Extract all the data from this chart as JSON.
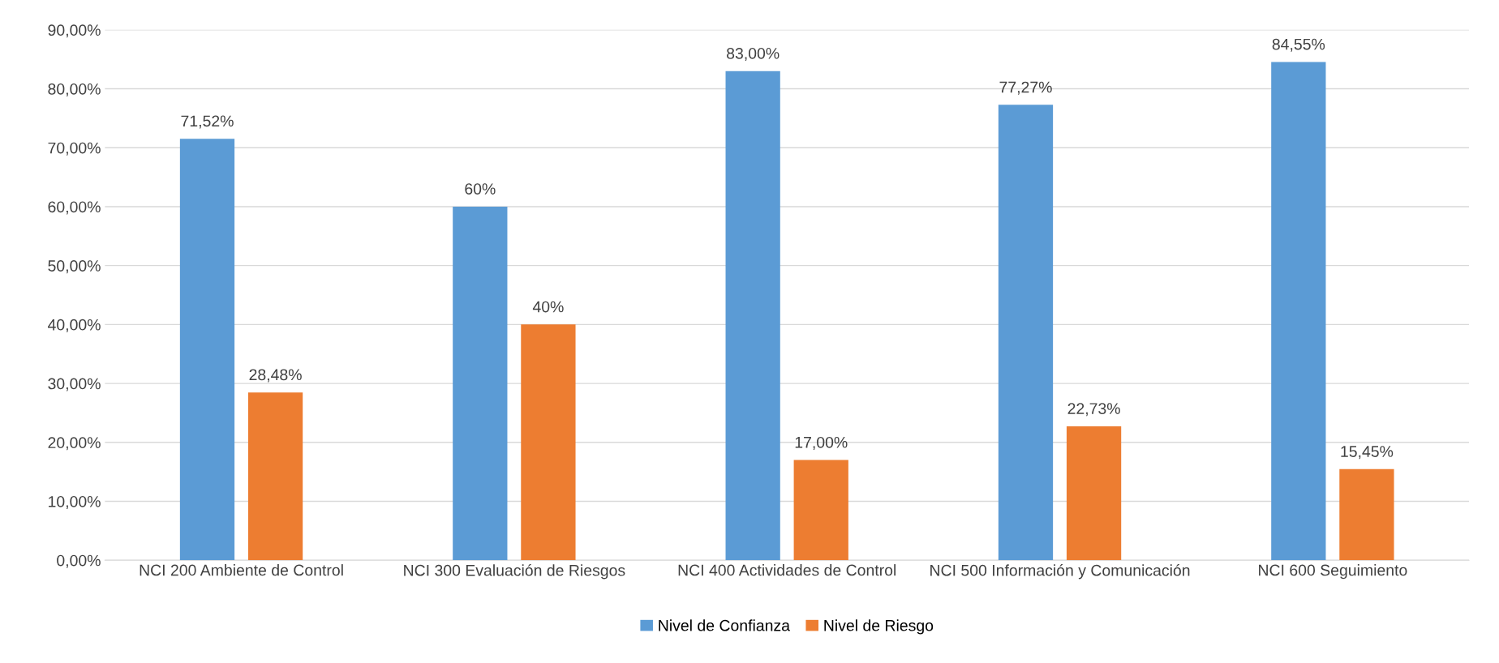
{
  "chart_data": {
    "type": "bar",
    "categories": [
      "NCI 200 Ambiente de Control",
      "NCI 300 Evaluación de Riesgos",
      "NCI 400 Actividades de Control",
      "NCI 500 Información y Comunicación",
      "NCI 600 Seguimiento"
    ],
    "series": [
      {
        "name": "Nivel de Confianza",
        "color": "#5b9bd5",
        "values": [
          71.52,
          60,
          83,
          77.27,
          84.55
        ],
        "value_labels": [
          "71,52%",
          "60%",
          "83,00%",
          "77,27%",
          "84,55%"
        ]
      },
      {
        "name": "Nivel de Riesgo",
        "color": "#ed7d31",
        "values": [
          28.48,
          40,
          17,
          22.73,
          15.45
        ],
        "value_labels": [
          "28,48%",
          "40%",
          "17,00%",
          "22,73%",
          "15,45%"
        ]
      }
    ],
    "ylim": [
      0,
      90
    ],
    "yticks": [
      {
        "value": 0,
        "label": "0,00%"
      },
      {
        "value": 10,
        "label": "10,00%"
      },
      {
        "value": 20,
        "label": "20,00%"
      },
      {
        "value": 30,
        "label": "30,00%"
      },
      {
        "value": 40,
        "label": "40,00%"
      },
      {
        "value": 50,
        "label": "50,00%"
      },
      {
        "value": 60,
        "label": "60,00%"
      },
      {
        "value": 70,
        "label": "70,00%"
      },
      {
        "value": 80,
        "label": "80,00%"
      },
      {
        "value": 90,
        "label": "90,00%"
      }
    ],
    "grid": "y",
    "legend": "bottom"
  }
}
